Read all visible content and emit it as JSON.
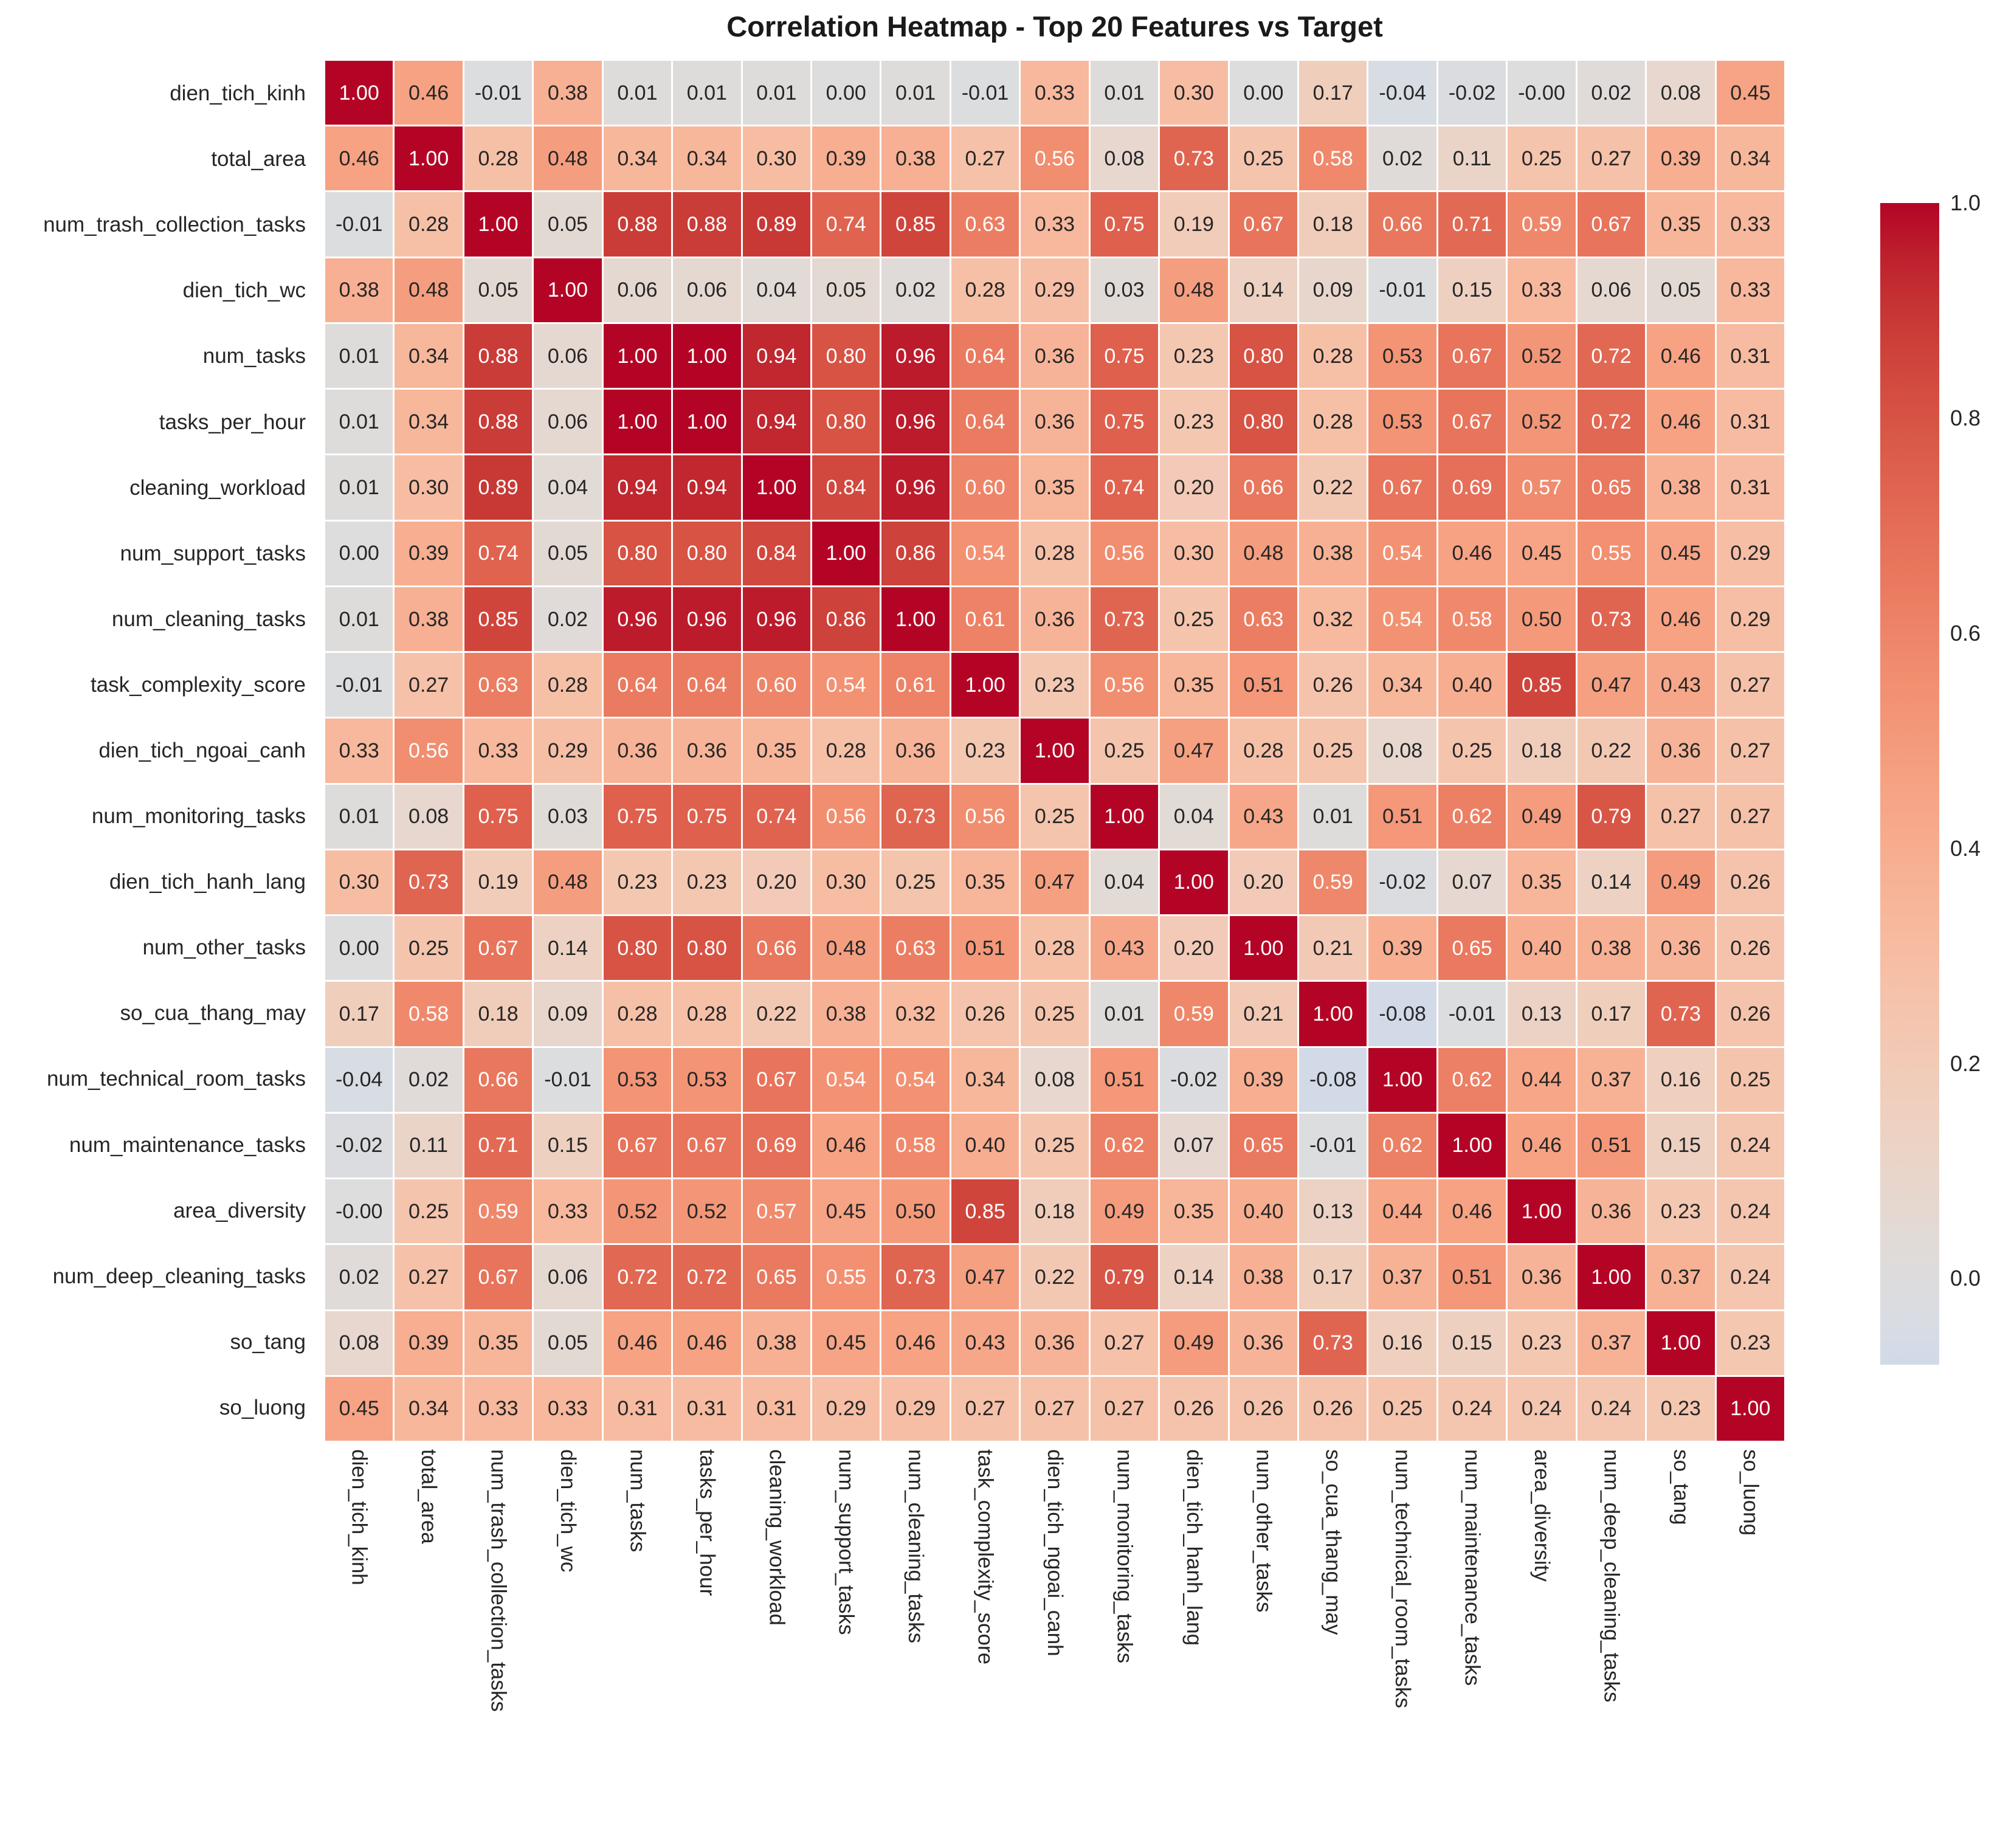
{
  "title": "Correlation Heatmap - Top 20 Features vs Target",
  "chart_data": {
    "type": "heatmap",
    "title": "Correlation Heatmap - Top 20 Features vs Target",
    "colormap": "coolwarm",
    "center": 0,
    "vmin": -0.08,
    "vmax": 1.0,
    "grid": false,
    "legend_position": "right-colorbar",
    "labels": [
      "dien_tich_kinh",
      "total_area",
      "num_trash_collection_tasks",
      "dien_tich_wc",
      "num_tasks",
      "tasks_per_hour",
      "cleaning_workload",
      "num_support_tasks",
      "num_cleaning_tasks",
      "task_complexity_score",
      "dien_tich_ngoai_canh",
      "num_monitoring_tasks",
      "dien_tich_hanh_lang",
      "num_other_tasks",
      "so_cua_thang_may",
      "num_technical_room_tasks",
      "num_maintenance_tasks",
      "area_diversity",
      "num_deep_cleaning_tasks",
      "so_tang",
      "so_luong"
    ],
    "matrix": [
      [
        "1.00",
        "0.46",
        "-0.01",
        "0.38",
        "0.01",
        "0.01",
        "0.01",
        "0.00",
        "0.01",
        "-0.01",
        "0.33",
        "0.01",
        "0.30",
        "0.00",
        "0.17",
        "-0.04",
        "-0.02",
        "-0.00",
        "0.02",
        "0.08",
        "0.45"
      ],
      [
        "0.46",
        "1.00",
        "0.28",
        "0.48",
        "0.34",
        "0.34",
        "0.30",
        "0.39",
        "0.38",
        "0.27",
        "0.56",
        "0.08",
        "0.73",
        "0.25",
        "0.58",
        "0.02",
        "0.11",
        "0.25",
        "0.27",
        "0.39",
        "0.34"
      ],
      [
        "-0.01",
        "0.28",
        "1.00",
        "0.05",
        "0.88",
        "0.88",
        "0.89",
        "0.74",
        "0.85",
        "0.63",
        "0.33",
        "0.75",
        "0.19",
        "0.67",
        "0.18",
        "0.66",
        "0.71",
        "0.59",
        "0.67",
        "0.35",
        "0.33"
      ],
      [
        "0.38",
        "0.48",
        "0.05",
        "1.00",
        "0.06",
        "0.06",
        "0.04",
        "0.05",
        "0.02",
        "0.28",
        "0.29",
        "0.03",
        "0.48",
        "0.14",
        "0.09",
        "-0.01",
        "0.15",
        "0.33",
        "0.06",
        "0.05",
        "0.33"
      ],
      [
        "0.01",
        "0.34",
        "0.88",
        "0.06",
        "1.00",
        "1.00",
        "0.94",
        "0.80",
        "0.96",
        "0.64",
        "0.36",
        "0.75",
        "0.23",
        "0.80",
        "0.28",
        "0.53",
        "0.67",
        "0.52",
        "0.72",
        "0.46",
        "0.31"
      ],
      [
        "0.01",
        "0.34",
        "0.88",
        "0.06",
        "1.00",
        "1.00",
        "0.94",
        "0.80",
        "0.96",
        "0.64",
        "0.36",
        "0.75",
        "0.23",
        "0.80",
        "0.28",
        "0.53",
        "0.67",
        "0.52",
        "0.72",
        "0.46",
        "0.31"
      ],
      [
        "0.01",
        "0.30",
        "0.89",
        "0.04",
        "0.94",
        "0.94",
        "1.00",
        "0.84",
        "0.96",
        "0.60",
        "0.35",
        "0.74",
        "0.20",
        "0.66",
        "0.22",
        "0.67",
        "0.69",
        "0.57",
        "0.65",
        "0.38",
        "0.31"
      ],
      [
        "0.00",
        "0.39",
        "0.74",
        "0.05",
        "0.80",
        "0.80",
        "0.84",
        "1.00",
        "0.86",
        "0.54",
        "0.28",
        "0.56",
        "0.30",
        "0.48",
        "0.38",
        "0.54",
        "0.46",
        "0.45",
        "0.55",
        "0.45",
        "0.29"
      ],
      [
        "0.01",
        "0.38",
        "0.85",
        "0.02",
        "0.96",
        "0.96",
        "0.96",
        "0.86",
        "1.00",
        "0.61",
        "0.36",
        "0.73",
        "0.25",
        "0.63",
        "0.32",
        "0.54",
        "0.58",
        "0.50",
        "0.73",
        "0.46",
        "0.29"
      ],
      [
        "-0.01",
        "0.27",
        "0.63",
        "0.28",
        "0.64",
        "0.64",
        "0.60",
        "0.54",
        "0.61",
        "1.00",
        "0.23",
        "0.56",
        "0.35",
        "0.51",
        "0.26",
        "0.34",
        "0.40",
        "0.85",
        "0.47",
        "0.43",
        "0.27"
      ],
      [
        "0.33",
        "0.56",
        "0.33",
        "0.29",
        "0.36",
        "0.36",
        "0.35",
        "0.28",
        "0.36",
        "0.23",
        "1.00",
        "0.25",
        "0.47",
        "0.28",
        "0.25",
        "0.08",
        "0.25",
        "0.18",
        "0.22",
        "0.36",
        "0.27"
      ],
      [
        "0.01",
        "0.08",
        "0.75",
        "0.03",
        "0.75",
        "0.75",
        "0.74",
        "0.56",
        "0.73",
        "0.56",
        "0.25",
        "1.00",
        "0.04",
        "0.43",
        "0.01",
        "0.51",
        "0.62",
        "0.49",
        "0.79",
        "0.27",
        "0.27"
      ],
      [
        "0.30",
        "0.73",
        "0.19",
        "0.48",
        "0.23",
        "0.23",
        "0.20",
        "0.30",
        "0.25",
        "0.35",
        "0.47",
        "0.04",
        "1.00",
        "0.20",
        "0.59",
        "-0.02",
        "0.07",
        "0.35",
        "0.14",
        "0.49",
        "0.26"
      ],
      [
        "0.00",
        "0.25",
        "0.67",
        "0.14",
        "0.80",
        "0.80",
        "0.66",
        "0.48",
        "0.63",
        "0.51",
        "0.28",
        "0.43",
        "0.20",
        "1.00",
        "0.21",
        "0.39",
        "0.65",
        "0.40",
        "0.38",
        "0.36",
        "0.26"
      ],
      [
        "0.17",
        "0.58",
        "0.18",
        "0.09",
        "0.28",
        "0.28",
        "0.22",
        "0.38",
        "0.32",
        "0.26",
        "0.25",
        "0.01",
        "0.59",
        "0.21",
        "1.00",
        "-0.08",
        "-0.01",
        "0.13",
        "0.17",
        "0.73",
        "0.26"
      ],
      [
        "-0.04",
        "0.02",
        "0.66",
        "-0.01",
        "0.53",
        "0.53",
        "0.67",
        "0.54",
        "0.54",
        "0.34",
        "0.08",
        "0.51",
        "-0.02",
        "0.39",
        "-0.08",
        "1.00",
        "0.62",
        "0.44",
        "0.37",
        "0.16",
        "0.25"
      ],
      [
        "-0.02",
        "0.11",
        "0.71",
        "0.15",
        "0.67",
        "0.67",
        "0.69",
        "0.46",
        "0.58",
        "0.40",
        "0.25",
        "0.62",
        "0.07",
        "0.65",
        "-0.01",
        "0.62",
        "1.00",
        "0.46",
        "0.51",
        "0.15",
        "0.24"
      ],
      [
        "-0.00",
        "0.25",
        "0.59",
        "0.33",
        "0.52",
        "0.52",
        "0.57",
        "0.45",
        "0.50",
        "0.85",
        "0.18",
        "0.49",
        "0.35",
        "0.40",
        "0.13",
        "0.44",
        "0.46",
        "1.00",
        "0.36",
        "0.23",
        "0.24"
      ],
      [
        "0.02",
        "0.27",
        "0.67",
        "0.06",
        "0.72",
        "0.72",
        "0.65",
        "0.55",
        "0.73",
        "0.47",
        "0.22",
        "0.79",
        "0.14",
        "0.38",
        "0.17",
        "0.37",
        "0.51",
        "0.36",
        "1.00",
        "0.37",
        "0.24"
      ],
      [
        "0.08",
        "0.39",
        "0.35",
        "0.05",
        "0.46",
        "0.46",
        "0.38",
        "0.45",
        "0.46",
        "0.43",
        "0.36",
        "0.27",
        "0.49",
        "0.36",
        "0.73",
        "0.16",
        "0.15",
        "0.23",
        "0.37",
        "1.00",
        "0.23"
      ],
      [
        "0.45",
        "0.34",
        "0.33",
        "0.33",
        "0.31",
        "0.31",
        "0.31",
        "0.29",
        "0.29",
        "0.27",
        "0.27",
        "0.27",
        "0.26",
        "0.26",
        "0.26",
        "0.25",
        "0.24",
        "0.24",
        "0.24",
        "0.23",
        "1.00"
      ]
    ],
    "colorbar_ticks": [
      {
        "label": "1.0",
        "value": 1.0
      },
      {
        "label": "0.8",
        "value": 0.8
      },
      {
        "label": "0.6",
        "value": 0.6
      },
      {
        "label": "0.4",
        "value": 0.4
      },
      {
        "label": "0.2",
        "value": 0.2
      },
      {
        "label": "0.0",
        "value": 0.0
      }
    ]
  }
}
